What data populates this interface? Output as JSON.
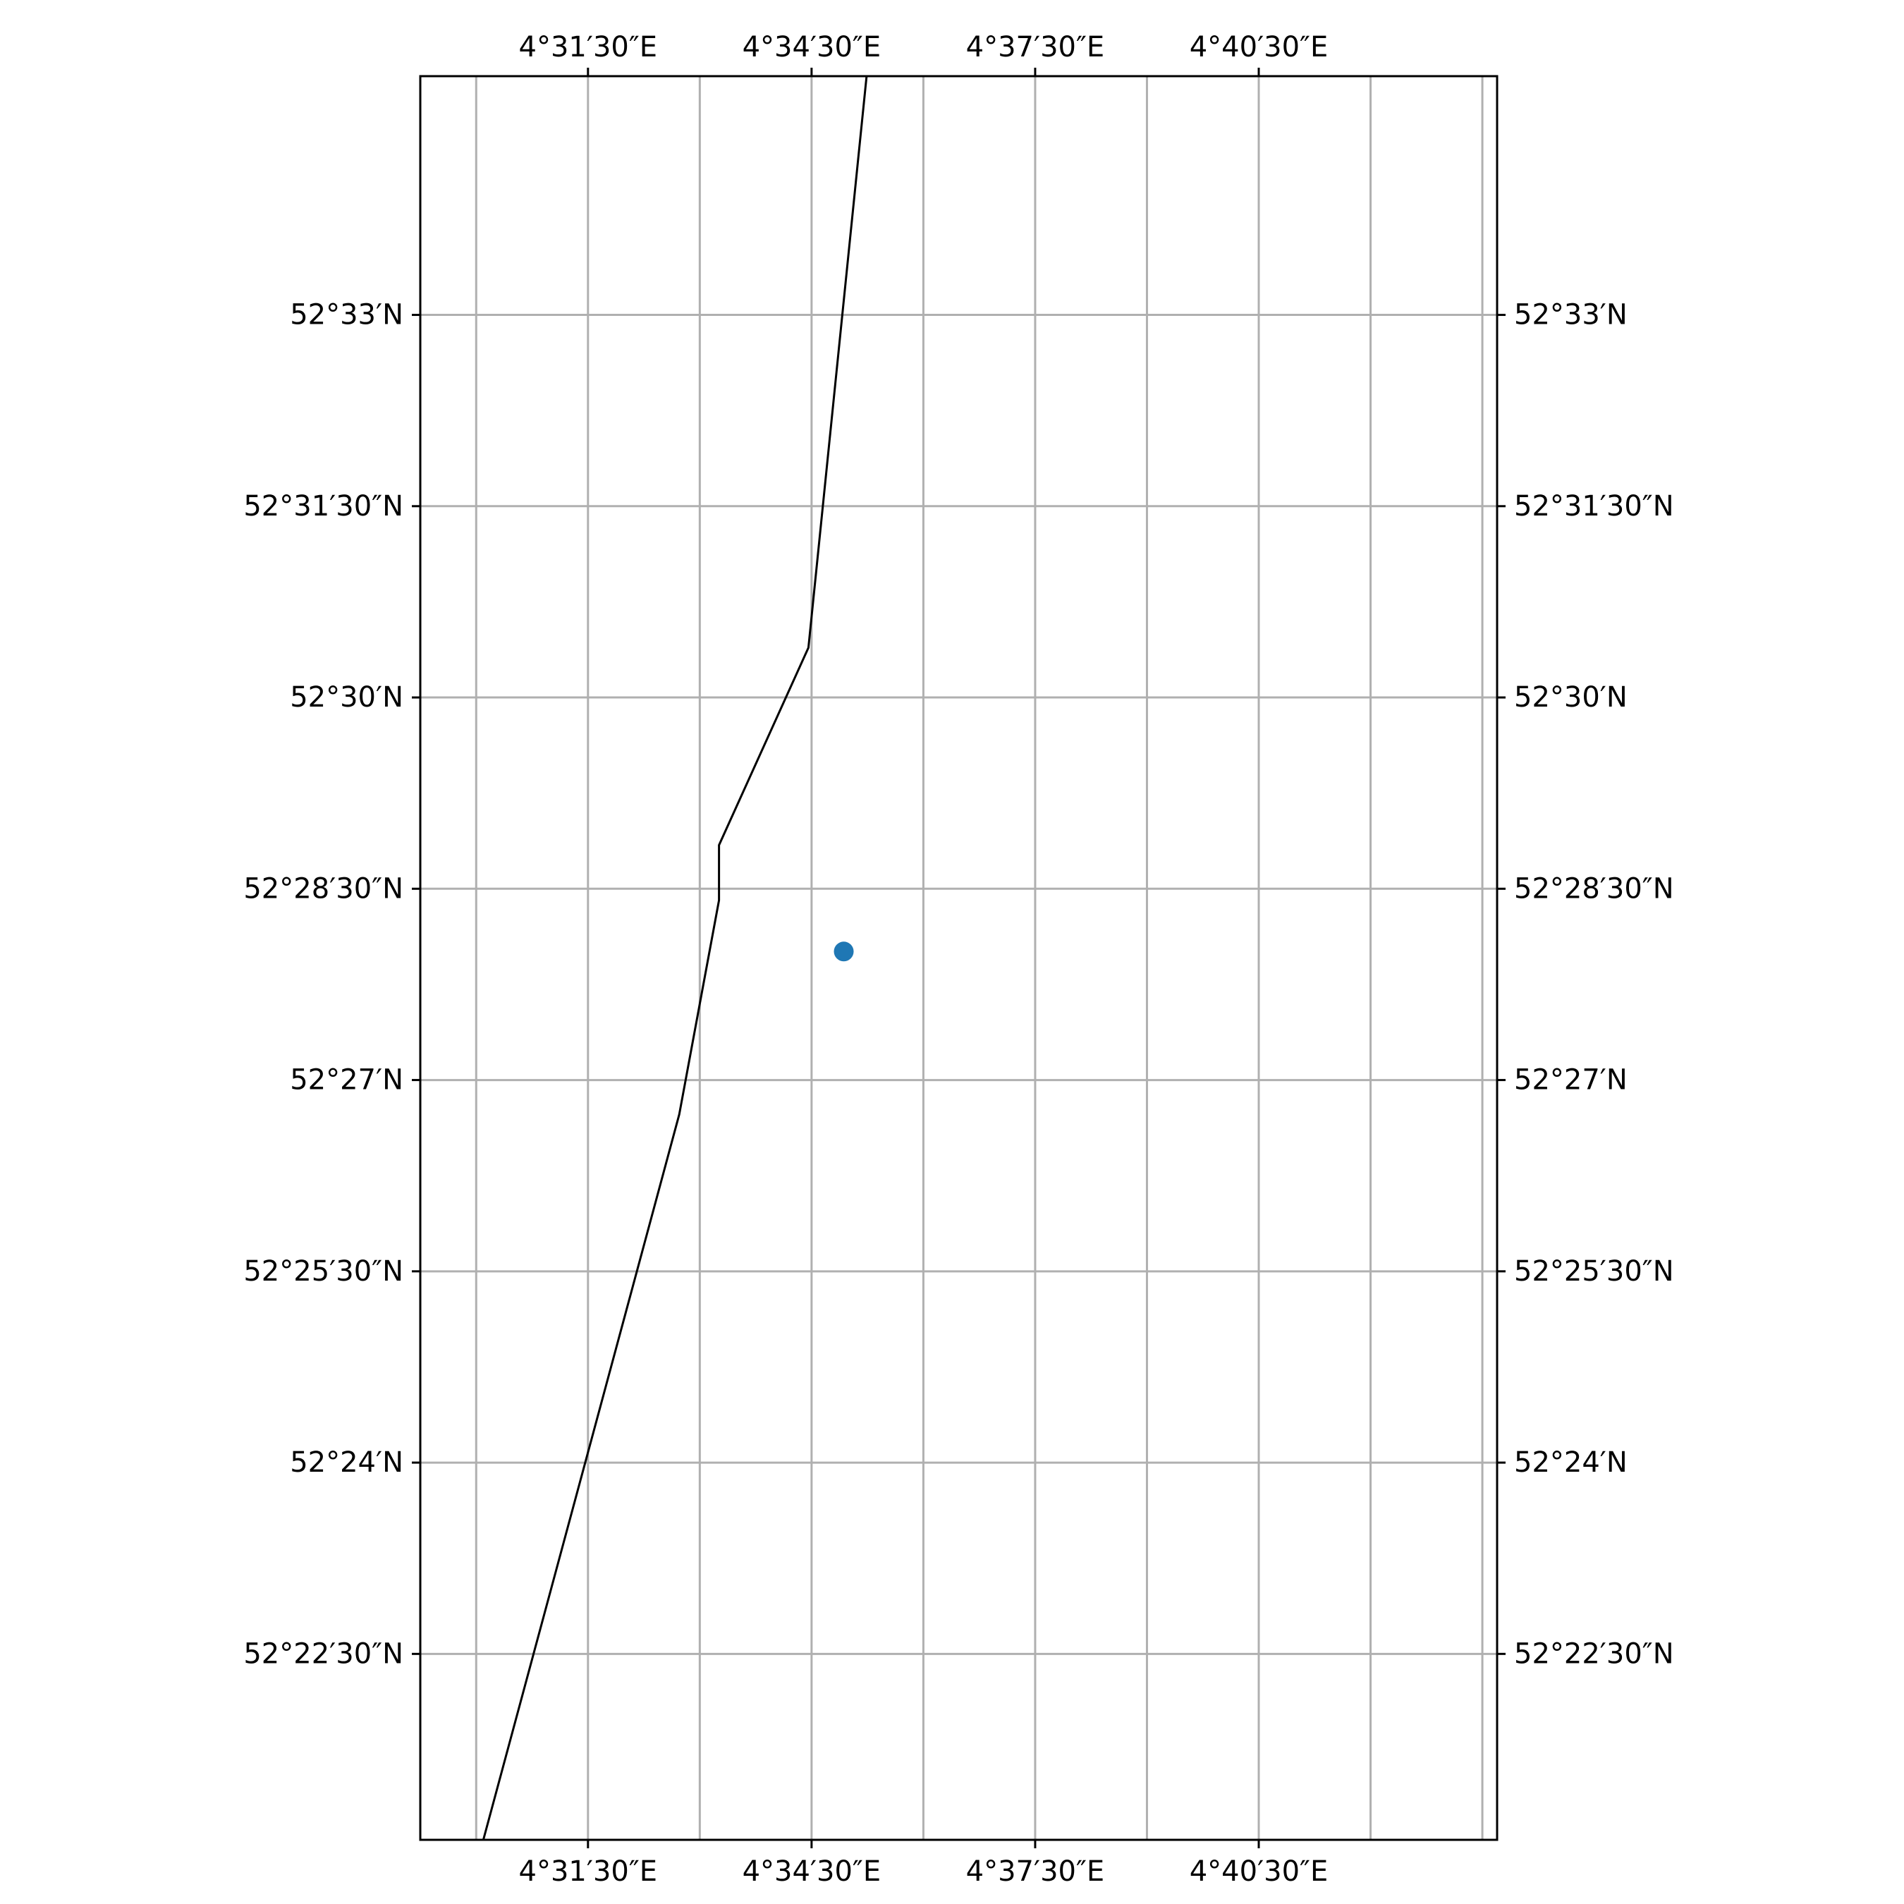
{
  "chart_data": {
    "type": "scatter",
    "projection": "plate-carree",
    "grid": true,
    "xlim": [
      4.4875,
      4.7283
    ],
    "ylim": [
      52.3507,
      52.5812
    ],
    "x_ticks": [
      {
        "value": 4.525,
        "label": "4°31′30″E"
      },
      {
        "value": 4.575,
        "label": "4°34′30″E"
      },
      {
        "value": 4.625,
        "label": "4°37′30″E"
      },
      {
        "value": 4.675,
        "label": "4°40′30″E"
      }
    ],
    "x_gridlines": [
      4.5,
      4.525,
      4.55,
      4.575,
      4.6,
      4.625,
      4.65,
      4.675,
      4.7,
      4.725
    ],
    "y_ticks": [
      {
        "value": 52.375,
        "label": "52°22′30″N"
      },
      {
        "value": 52.4,
        "label": "52°24′N"
      },
      {
        "value": 52.425,
        "label": "52°25′30″N"
      },
      {
        "value": 52.45,
        "label": "52°27′N"
      },
      {
        "value": 52.475,
        "label": "52°28′30″N"
      },
      {
        "value": 52.5,
        "label": "52°30′N"
      },
      {
        "value": 52.525,
        "label": "52°31′30″N"
      },
      {
        "value": 52.55,
        "label": "52°33′N"
      }
    ],
    "coastline": [
      [
        4.5016,
        52.3507
      ],
      [
        4.5454,
        52.4455
      ],
      [
        4.5543,
        52.4735
      ],
      [
        4.5543,
        52.4807
      ],
      [
        4.5743,
        52.5065
      ],
      [
        4.5873,
        52.5812
      ]
    ],
    "points": [
      {
        "lon": 4.5822,
        "lat": 52.4668,
        "color": "#1f77b4"
      }
    ],
    "colors": {
      "grid": "#b0b0b0",
      "coastline": "#000000",
      "frame": "#000000",
      "point": "#1f77b4"
    }
  }
}
